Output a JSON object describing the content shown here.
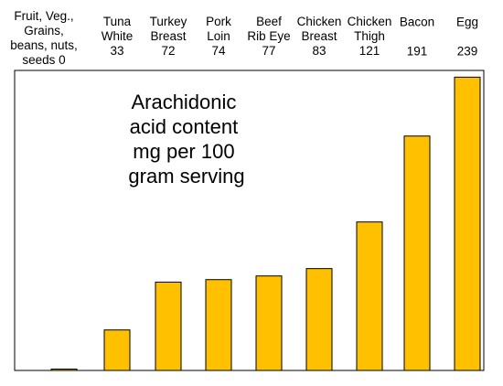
{
  "chart_data": {
    "type": "bar",
    "title_lines": [
      "Arachidonic",
      "acid content",
      "mg per 100",
      "gram serving"
    ],
    "categories": [
      [
        "Fruit, Veg.,",
        "Grains,",
        "beans, nuts,",
        "seeds 0"
      ],
      [
        "Tuna",
        "White",
        "33"
      ],
      [
        "Turkey",
        "Breast",
        "72"
      ],
      [
        "Pork",
        "Loin",
        "74"
      ],
      [
        "Beef",
        "Rib Eye",
        "77"
      ],
      [
        "Chicken",
        "Breast",
        "83"
      ],
      [
        "Chicken",
        "Thigh",
        "121"
      ],
      [
        "Bacon",
        "",
        "191"
      ],
      [
        "Egg",
        "",
        "239"
      ]
    ],
    "values": [
      0,
      33,
      72,
      74,
      77,
      83,
      121,
      191,
      239
    ],
    "ylim": [
      0,
      240
    ],
    "grid": false,
    "bar_color": "#FFC000",
    "bar_edge_color": "#000000"
  }
}
